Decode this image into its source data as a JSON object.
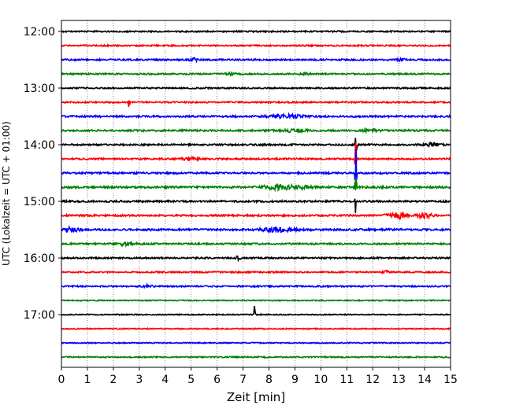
{
  "chart_data": {
    "type": "line",
    "title": "",
    "xlabel": "Zeit  [min]",
    "ylabel": "UTC (Lokalzeit = UTC + 01:00)",
    "xlim": [
      0,
      15
    ],
    "x_ticks": [
      0,
      1,
      2,
      3,
      4,
      5,
      6,
      7,
      8,
      9,
      10,
      11,
      12,
      13,
      14,
      15
    ],
    "y_tick_labels": [
      "12:00",
      "13:00",
      "14:00",
      "15:00",
      "16:00",
      "17:00"
    ],
    "grid": "vertical dotted",
    "row_minutes": 15,
    "colors": [
      "#000000",
      "#ff0000",
      "#0000ff",
      "#008000"
    ],
    "traces": [
      {
        "start": "12:00",
        "color": "#000000",
        "noise": 0.4,
        "events": []
      },
      {
        "start": "12:15",
        "color": "#ff0000",
        "noise": 0.4,
        "events": []
      },
      {
        "start": "12:30",
        "color": "#0000ff",
        "noise": 0.45,
        "events": [
          {
            "t": 5.1,
            "amp": 0.9,
            "width": 0.15
          },
          {
            "t": 13.1,
            "amp": 0.8,
            "width": 0.15
          }
        ]
      },
      {
        "start": "12:45",
        "color": "#008000",
        "noise": 0.4,
        "events": [
          {
            "t": 6.5,
            "amp": 0.6,
            "width": 0.2
          },
          {
            "t": 9.4,
            "amp": 0.6,
            "width": 0.2
          }
        ]
      },
      {
        "start": "13:00",
        "color": "#000000",
        "noise": 0.4,
        "events": []
      },
      {
        "start": "13:15",
        "color": "#ff0000",
        "noise": 0.4,
        "events": [
          {
            "t": 2.6,
            "amp": 1.5,
            "width": 0.03
          }
        ]
      },
      {
        "start": "13:30",
        "color": "#0000ff",
        "noise": 0.5,
        "events": [
          {
            "t": 8.7,
            "amp": 1.0,
            "width": 0.6
          }
        ]
      },
      {
        "start": "13:45",
        "color": "#008000",
        "noise": 0.5,
        "events": [
          {
            "t": 9.0,
            "amp": 0.8,
            "width": 0.4
          },
          {
            "t": 11.9,
            "amp": 0.9,
            "width": 0.25
          }
        ]
      },
      {
        "start": "14:00",
        "color": "#000000",
        "noise": 0.45,
        "events": [
          {
            "t": 14.3,
            "amp": 1.0,
            "width": 0.3
          },
          {
            "t": 11.35,
            "amp": 3.5,
            "width": 0.03
          }
        ]
      },
      {
        "start": "14:15",
        "color": "#ff0000",
        "noise": 0.45,
        "events": [
          {
            "t": 4.9,
            "amp": 0.8,
            "width": 0.3
          },
          {
            "t": 11.35,
            "amp": 3.0,
            "width": 0.03
          }
        ]
      },
      {
        "start": "14:30",
        "color": "#0000ff",
        "noise": 0.5,
        "events": [
          {
            "t": 11.35,
            "amp": 4.0,
            "width": 0.03
          }
        ]
      },
      {
        "start": "14:45",
        "color": "#008000",
        "noise": 0.55,
        "events": [
          {
            "t": 8.4,
            "amp": 1.3,
            "width": 0.6
          },
          {
            "t": 9.3,
            "amp": 1.0,
            "width": 0.3
          },
          {
            "t": 11.35,
            "amp": 3.0,
            "width": 0.03
          }
        ]
      },
      {
        "start": "15:00",
        "color": "#000000",
        "noise": 0.5,
        "events": [
          {
            "t": 11.35,
            "amp": 2.0,
            "width": 0.03
          }
        ]
      },
      {
        "start": "15:15",
        "color": "#ff0000",
        "noise": 0.5,
        "events": [
          {
            "t": 12.9,
            "amp": 2.0,
            "width": 0.35
          },
          {
            "t": 14.0,
            "amp": 1.2,
            "width": 0.3
          }
        ]
      },
      {
        "start": "15:30",
        "color": "#0000ff",
        "noise": 0.55,
        "events": [
          {
            "t": 0.4,
            "amp": 1.1,
            "width": 0.3
          },
          {
            "t": 8.4,
            "amp": 1.2,
            "width": 0.6
          }
        ]
      },
      {
        "start": "15:45",
        "color": "#008000",
        "noise": 0.45,
        "events": [
          {
            "t": 2.5,
            "amp": 0.8,
            "width": 0.4
          }
        ]
      },
      {
        "start": "16:00",
        "color": "#000000",
        "noise": 0.45,
        "events": [
          {
            "t": 6.8,
            "amp": 0.8,
            "width": 0.1
          }
        ]
      },
      {
        "start": "16:15",
        "color": "#ff0000",
        "noise": 0.4,
        "events": [
          {
            "t": 12.5,
            "amp": 0.7,
            "width": 0.1
          }
        ]
      },
      {
        "start": "16:30",
        "color": "#0000ff",
        "noise": 0.4,
        "events": [
          {
            "t": 3.3,
            "amp": 0.6,
            "width": 0.2
          }
        ]
      },
      {
        "start": "16:45",
        "color": "#008000",
        "noise": 0.3,
        "events": []
      },
      {
        "start": "17:00",
        "color": "#000000",
        "noise": 0.3,
        "events": [
          {
            "t": 7.45,
            "amp": 2.0,
            "width": 0.02
          }
        ]
      },
      {
        "start": "17:15",
        "color": "#ff0000",
        "noise": 0.3,
        "events": []
      },
      {
        "start": "17:30",
        "color": "#0000ff",
        "noise": 0.3,
        "events": []
      },
      {
        "start": "17:45",
        "color": "#008000",
        "noise": 0.35,
        "events": []
      }
    ]
  }
}
